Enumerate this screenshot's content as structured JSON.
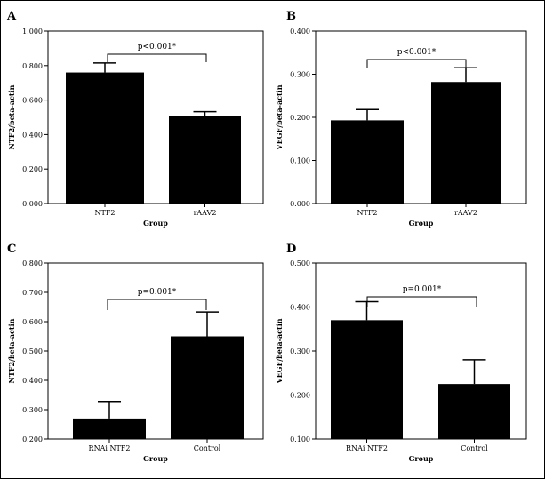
{
  "chart_data": [
    {
      "panel": "A",
      "type": "bar",
      "categories": [
        "NTF2",
        "rAAV2"
      ],
      "values": [
        0.76,
        0.51
      ],
      "errors_upper": [
        0.815,
        0.533
      ],
      "xlabel": "Group",
      "ylabel": "NTF2/beta-actin",
      "ylim": [
        0,
        1.0
      ],
      "yticks": [
        "0.000",
        "0.200",
        "0.400",
        "0.600",
        "0.800",
        "1.000"
      ],
      "ytick_values": [
        0,
        0.2,
        0.4,
        0.6,
        0.8,
        1.0
      ],
      "annotation": "p<0.001*",
      "grid": false
    },
    {
      "panel": "B",
      "type": "bar",
      "categories": [
        "NTF2",
        "rAAV2"
      ],
      "values": [
        0.193,
        0.282
      ],
      "errors_upper": [
        0.218,
        0.315
      ],
      "xlabel": "Group",
      "ylabel": "VEGF/beta-actin",
      "ylim": [
        0,
        0.4
      ],
      "yticks": [
        "0.000",
        "0.100",
        "0.200",
        "0.300",
        "0.400"
      ],
      "ytick_values": [
        0,
        0.1,
        0.2,
        0.3,
        0.4
      ],
      "annotation": "p<0.001*",
      "grid": false
    },
    {
      "panel": "C",
      "type": "bar",
      "categories": [
        "RNAi NTF2",
        "Control"
      ],
      "values": [
        0.27,
        0.55
      ],
      "errors_upper": [
        0.328,
        0.633
      ],
      "xlabel": "Group",
      "ylabel": "NTF2/beta-actin",
      "ylim": [
        0.2,
        0.8
      ],
      "yticks": [
        "0.200",
        "0.300",
        "0.400",
        "0.500",
        "0.600",
        "0.700",
        "0.800"
      ],
      "ytick_values": [
        0.2,
        0.3,
        0.4,
        0.5,
        0.6,
        0.7,
        0.8
      ],
      "annotation": "p=0.001*",
      "grid": false
    },
    {
      "panel": "D",
      "type": "bar",
      "categories": [
        "RNAi NTF2",
        "Control"
      ],
      "values": [
        0.37,
        0.225
      ],
      "errors_upper": [
        0.412,
        0.28
      ],
      "xlabel": "Group",
      "ylabel": "VEGF/beta-actin",
      "ylim": [
        0.1,
        0.5
      ],
      "yticks": [
        "0.100",
        "0.200",
        "0.300",
        "0.400",
        "0.500"
      ],
      "ytick_values": [
        0.1,
        0.2,
        0.3,
        0.4,
        0.5
      ],
      "annotation": "p=0.001*",
      "grid": false
    }
  ],
  "colors": {
    "bar": "#000000",
    "frame": "#000000",
    "background": "#ffffff"
  }
}
